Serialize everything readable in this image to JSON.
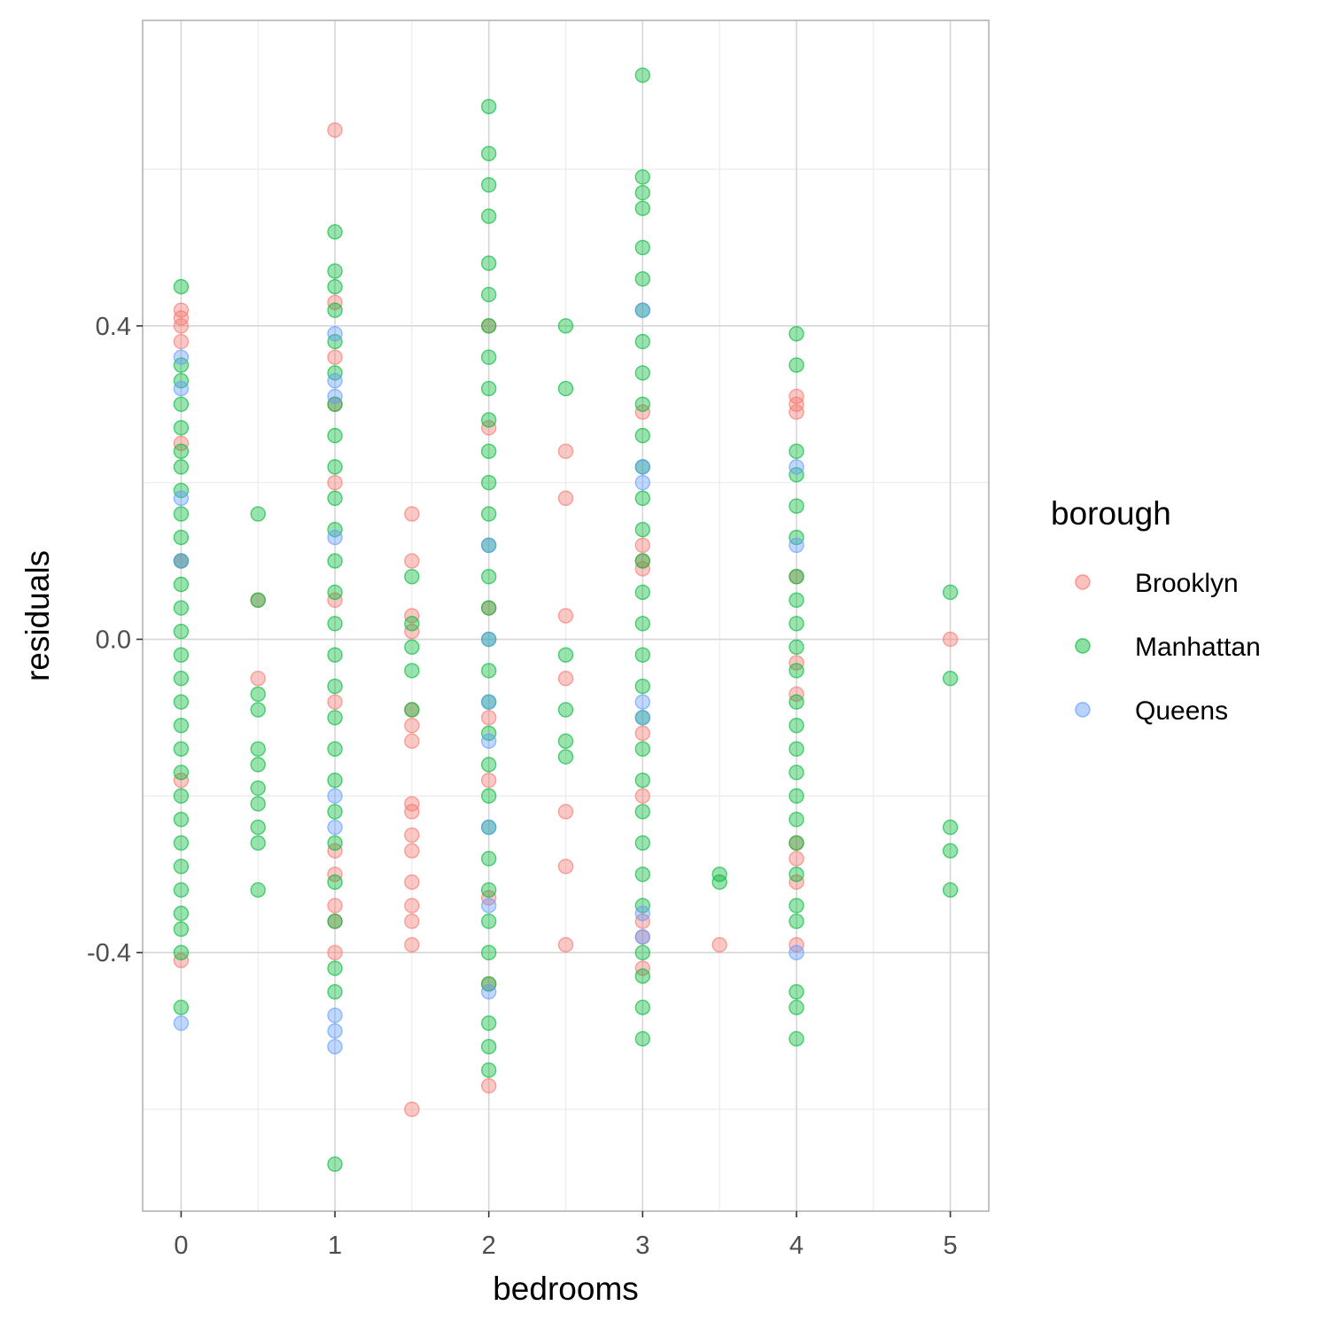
{
  "chart_data": {
    "type": "scatter",
    "xlabel": "bedrooms",
    "ylabel": "residuals",
    "xlim": [
      -0.25,
      5.25
    ],
    "ylim": [
      -0.73,
      0.79
    ],
    "x_ticks": [
      0,
      1,
      2,
      3,
      4,
      5
    ],
    "x_tick_labels": [
      "0",
      "1",
      "2",
      "3",
      "4",
      "5"
    ],
    "y_ticks": [
      -0.4,
      0.0,
      0.4
    ],
    "y_tick_labels": [
      "-0.4",
      "0.0",
      "0.4"
    ],
    "grid": true,
    "legend": {
      "title": "borough",
      "position": "right",
      "entries": [
        "Brooklyn",
        "Manhattan",
        "Queens"
      ]
    },
    "colors": {
      "Brooklyn": "#F8766D",
      "Manhattan": "#00BA38",
      "Queens": "#619CFF"
    },
    "series": [
      {
        "name": "Brooklyn",
        "points": [
          [
            0,
            0.42
          ],
          [
            0,
            0.41
          ],
          [
            0,
            0.4
          ],
          [
            0,
            0.38
          ],
          [
            0,
            0.25
          ],
          [
            0,
            0.1
          ],
          [
            0,
            -0.18
          ],
          [
            0,
            -0.41
          ],
          [
            0.5,
            0.05
          ],
          [
            0.5,
            -0.05
          ],
          [
            1,
            0.65
          ],
          [
            1,
            0.43
          ],
          [
            1,
            0.36
          ],
          [
            1,
            0.3
          ],
          [
            1,
            0.2
          ],
          [
            1,
            0.05
          ],
          [
            1,
            -0.08
          ],
          [
            1,
            -0.27
          ],
          [
            1,
            -0.3
          ],
          [
            1,
            -0.34
          ],
          [
            1,
            -0.36
          ],
          [
            1,
            -0.4
          ],
          [
            1.5,
            0.16
          ],
          [
            1.5,
            0.1
          ],
          [
            1.5,
            0.03
          ],
          [
            1.5,
            0.01
          ],
          [
            1.5,
            -0.09
          ],
          [
            1.5,
            -0.11
          ],
          [
            1.5,
            -0.13
          ],
          [
            1.5,
            -0.21
          ],
          [
            1.5,
            -0.22
          ],
          [
            1.5,
            -0.25
          ],
          [
            1.5,
            -0.27
          ],
          [
            1.5,
            -0.31
          ],
          [
            1.5,
            -0.34
          ],
          [
            1.5,
            -0.36
          ],
          [
            1.5,
            -0.39
          ],
          [
            1.5,
            -0.6
          ],
          [
            2,
            0.4
          ],
          [
            2,
            0.27
          ],
          [
            2,
            0.04
          ],
          [
            2,
            -0.1
          ],
          [
            2,
            -0.18
          ],
          [
            2,
            -0.33
          ],
          [
            2,
            -0.44
          ],
          [
            2,
            -0.57
          ],
          [
            2.5,
            0.24
          ],
          [
            2.5,
            0.18
          ],
          [
            2.5,
            0.03
          ],
          [
            2.5,
            -0.05
          ],
          [
            2.5,
            -0.22
          ],
          [
            2.5,
            -0.29
          ],
          [
            2.5,
            -0.39
          ],
          [
            3,
            0.29
          ],
          [
            3,
            0.12
          ],
          [
            3,
            0.1
          ],
          [
            3,
            0.09
          ],
          [
            3,
            -0.12
          ],
          [
            3,
            -0.2
          ],
          [
            3,
            -0.36
          ],
          [
            3,
            -0.38
          ],
          [
            3,
            -0.42
          ],
          [
            3.5,
            -0.39
          ],
          [
            4,
            0.31
          ],
          [
            4,
            0.3
          ],
          [
            4,
            0.29
          ],
          [
            4,
            0.08
          ],
          [
            4,
            -0.03
          ],
          [
            4,
            -0.07
          ],
          [
            4,
            -0.26
          ],
          [
            4,
            -0.28
          ],
          [
            4,
            -0.31
          ],
          [
            4,
            -0.39
          ],
          [
            5,
            0.0
          ]
        ]
      },
      {
        "name": "Manhattan",
        "points": [
          [
            0,
            0.45
          ],
          [
            0,
            0.35
          ],
          [
            0,
            0.33
          ],
          [
            0,
            0.3
          ],
          [
            0,
            0.27
          ],
          [
            0,
            0.24
          ],
          [
            0,
            0.22
          ],
          [
            0,
            0.19
          ],
          [
            0,
            0.16
          ],
          [
            0,
            0.13
          ],
          [
            0,
            0.1
          ],
          [
            0,
            0.07
          ],
          [
            0,
            0.04
          ],
          [
            0,
            0.01
          ],
          [
            0,
            -0.02
          ],
          [
            0,
            -0.05
          ],
          [
            0,
            -0.08
          ],
          [
            0,
            -0.11
          ],
          [
            0,
            -0.14
          ],
          [
            0,
            -0.17
          ],
          [
            0,
            -0.2
          ],
          [
            0,
            -0.23
          ],
          [
            0,
            -0.26
          ],
          [
            0,
            -0.29
          ],
          [
            0,
            -0.32
          ],
          [
            0,
            -0.35
          ],
          [
            0,
            -0.37
          ],
          [
            0,
            -0.4
          ],
          [
            0,
            -0.47
          ],
          [
            0.5,
            0.16
          ],
          [
            0.5,
            0.05
          ],
          [
            0.5,
            -0.07
          ],
          [
            0.5,
            -0.09
          ],
          [
            0.5,
            -0.14
          ],
          [
            0.5,
            -0.16
          ],
          [
            0.5,
            -0.19
          ],
          [
            0.5,
            -0.21
          ],
          [
            0.5,
            -0.24
          ],
          [
            0.5,
            -0.26
          ],
          [
            0.5,
            -0.32
          ],
          [
            1,
            0.52
          ],
          [
            1,
            0.47
          ],
          [
            1,
            0.45
          ],
          [
            1,
            0.42
          ],
          [
            1,
            0.38
          ],
          [
            1,
            0.34
          ],
          [
            1,
            0.3
          ],
          [
            1,
            0.26
          ],
          [
            1,
            0.22
          ],
          [
            1,
            0.18
          ],
          [
            1,
            0.14
          ],
          [
            1,
            0.1
          ],
          [
            1,
            0.06
          ],
          [
            1,
            0.02
          ],
          [
            1,
            -0.02
          ],
          [
            1,
            -0.06
          ],
          [
            1,
            -0.1
          ],
          [
            1,
            -0.14
          ],
          [
            1,
            -0.18
          ],
          [
            1,
            -0.22
          ],
          [
            1,
            -0.26
          ],
          [
            1,
            -0.31
          ],
          [
            1,
            -0.36
          ],
          [
            1,
            -0.42
          ],
          [
            1,
            -0.45
          ],
          [
            1,
            -0.67
          ],
          [
            1.5,
            0.08
          ],
          [
            1.5,
            0.02
          ],
          [
            1.5,
            -0.01
          ],
          [
            1.5,
            -0.04
          ],
          [
            1.5,
            -0.09
          ],
          [
            2,
            0.68
          ],
          [
            2,
            0.62
          ],
          [
            2,
            0.58
          ],
          [
            2,
            0.54
          ],
          [
            2,
            0.48
          ],
          [
            2,
            0.44
          ],
          [
            2,
            0.4
          ],
          [
            2,
            0.36
          ],
          [
            2,
            0.32
          ],
          [
            2,
            0.28
          ],
          [
            2,
            0.24
          ],
          [
            2,
            0.2
          ],
          [
            2,
            0.16
          ],
          [
            2,
            0.12
          ],
          [
            2,
            0.08
          ],
          [
            2,
            0.04
          ],
          [
            2,
            0.0
          ],
          [
            2,
            -0.04
          ],
          [
            2,
            -0.08
          ],
          [
            2,
            -0.12
          ],
          [
            2,
            -0.16
          ],
          [
            2,
            -0.2
          ],
          [
            2,
            -0.24
          ],
          [
            2,
            -0.28
          ],
          [
            2,
            -0.32
          ],
          [
            2,
            -0.36
          ],
          [
            2,
            -0.4
          ],
          [
            2,
            -0.44
          ],
          [
            2,
            -0.49
          ],
          [
            2,
            -0.52
          ],
          [
            2,
            -0.55
          ],
          [
            2.5,
            0.4
          ],
          [
            2.5,
            0.32
          ],
          [
            2.5,
            -0.02
          ],
          [
            2.5,
            -0.09
          ],
          [
            2.5,
            -0.13
          ],
          [
            2.5,
            -0.15
          ],
          [
            3,
            0.72
          ],
          [
            3,
            0.59
          ],
          [
            3,
            0.57
          ],
          [
            3,
            0.55
          ],
          [
            3,
            0.5
          ],
          [
            3,
            0.46
          ],
          [
            3,
            0.42
          ],
          [
            3,
            0.38
          ],
          [
            3,
            0.34
          ],
          [
            3,
            0.3
          ],
          [
            3,
            0.26
          ],
          [
            3,
            0.22
          ],
          [
            3,
            0.18
          ],
          [
            3,
            0.14
          ],
          [
            3,
            0.1
          ],
          [
            3,
            0.06
          ],
          [
            3,
            0.02
          ],
          [
            3,
            -0.02
          ],
          [
            3,
            -0.06
          ],
          [
            3,
            -0.1
          ],
          [
            3,
            -0.14
          ],
          [
            3,
            -0.18
          ],
          [
            3,
            -0.22
          ],
          [
            3,
            -0.26
          ],
          [
            3,
            -0.3
          ],
          [
            3,
            -0.34
          ],
          [
            3,
            -0.4
          ],
          [
            3,
            -0.43
          ],
          [
            3,
            -0.47
          ],
          [
            3,
            -0.51
          ],
          [
            3.5,
            -0.3
          ],
          [
            3.5,
            -0.31
          ],
          [
            4,
            0.39
          ],
          [
            4,
            0.35
          ],
          [
            4,
            0.24
          ],
          [
            4,
            0.21
          ],
          [
            4,
            0.17
          ],
          [
            4,
            0.13
          ],
          [
            4,
            0.08
          ],
          [
            4,
            0.05
          ],
          [
            4,
            0.02
          ],
          [
            4,
            -0.01
          ],
          [
            4,
            -0.04
          ],
          [
            4,
            -0.08
          ],
          [
            4,
            -0.11
          ],
          [
            4,
            -0.14
          ],
          [
            4,
            -0.17
          ],
          [
            4,
            -0.2
          ],
          [
            4,
            -0.23
          ],
          [
            4,
            -0.26
          ],
          [
            4,
            -0.3
          ],
          [
            4,
            -0.34
          ],
          [
            4,
            -0.36
          ],
          [
            4,
            -0.45
          ],
          [
            4,
            -0.47
          ],
          [
            4,
            -0.51
          ],
          [
            5,
            0.06
          ],
          [
            5,
            -0.05
          ],
          [
            5,
            -0.24
          ],
          [
            5,
            -0.27
          ],
          [
            5,
            -0.32
          ]
        ]
      },
      {
        "name": "Queens",
        "points": [
          [
            0,
            0.36
          ],
          [
            0,
            0.32
          ],
          [
            0,
            0.18
          ],
          [
            0,
            0.1
          ],
          [
            0,
            -0.49
          ],
          [
            1,
            0.39
          ],
          [
            1,
            0.33
          ],
          [
            1,
            0.31
          ],
          [
            1,
            0.13
          ],
          [
            1,
            -0.2
          ],
          [
            1,
            -0.24
          ],
          [
            1,
            -0.48
          ],
          [
            1,
            -0.5
          ],
          [
            1,
            -0.52
          ],
          [
            2,
            0.12
          ],
          [
            2,
            0.0
          ],
          [
            2,
            -0.08
          ],
          [
            2,
            -0.13
          ],
          [
            2,
            -0.24
          ],
          [
            2,
            -0.34
          ],
          [
            2,
            -0.45
          ],
          [
            3,
            0.42
          ],
          [
            3,
            0.22
          ],
          [
            3,
            0.2
          ],
          [
            3,
            -0.08
          ],
          [
            3,
            -0.1
          ],
          [
            3,
            -0.35
          ],
          [
            3,
            -0.38
          ],
          [
            4,
            0.22
          ],
          [
            4,
            0.12
          ],
          [
            4,
            -0.4
          ]
        ]
      }
    ]
  }
}
